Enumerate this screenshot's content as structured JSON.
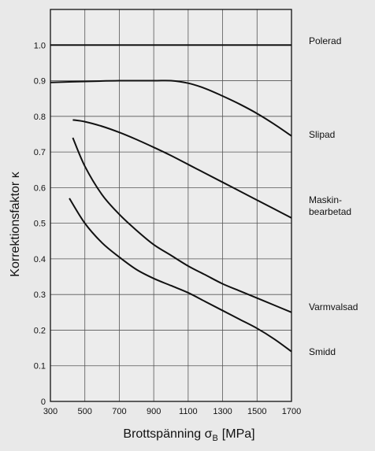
{
  "chart_data": {
    "type": "line",
    "title": "",
    "xlabel": "Brottspänning σ",
    "xlabel_subscript": "B",
    "xlabel_unit": "[MPa]",
    "ylabel": "Korrektionsfaktor  κ",
    "xlim": [
      300,
      1700
    ],
    "ylim": [
      0,
      1.1
    ],
    "x_ticks": [
      300,
      500,
      700,
      900,
      1100,
      1300,
      1500,
      1700
    ],
    "y_ticks": [
      0,
      0.1,
      0.2,
      0.3,
      0.4,
      0.5,
      0.6,
      0.7,
      0.8,
      0.9,
      1.0
    ],
    "y_tick_labels": [
      "0",
      "0.1",
      "0.2",
      "0.3",
      "0.4",
      "0.5",
      "0.6",
      "0.7",
      "0.8",
      "0.9",
      "1.0"
    ],
    "grid": true,
    "legend": "right-side labels",
    "line_color": "#111111",
    "grid_color": "#555555",
    "series": [
      {
        "name": "Polerad",
        "label_lines": [
          "Polerad"
        ],
        "x": [
          300,
          500,
          700,
          900,
          1100,
          1300,
          1500,
          1700
        ],
        "y": [
          1.0,
          1.0,
          1.0,
          1.0,
          1.0,
          1.0,
          1.0,
          1.0
        ]
      },
      {
        "name": "Slipad",
        "label_lines": [
          "Slipad"
        ],
        "x": [
          300,
          500,
          700,
          900,
          1000,
          1100,
          1200,
          1300,
          1400,
          1500,
          1600,
          1700
        ],
        "y": [
          0.895,
          0.898,
          0.9,
          0.9,
          0.9,
          0.893,
          0.878,
          0.857,
          0.834,
          0.808,
          0.778,
          0.745
        ]
      },
      {
        "name": "Maskinbearbetad",
        "label_lines": [
          "Maskin-",
          "bearbetad"
        ],
        "x": [
          430,
          500,
          600,
          700,
          800,
          900,
          1000,
          1100,
          1200,
          1300,
          1400,
          1500,
          1600,
          1700
        ],
        "y": [
          0.79,
          0.785,
          0.772,
          0.755,
          0.735,
          0.713,
          0.69,
          0.665,
          0.64,
          0.615,
          0.59,
          0.565,
          0.54,
          0.515
        ]
      },
      {
        "name": "Varmvalsad",
        "label_lines": [
          "Varmvalsad"
        ],
        "x": [
          430,
          500,
          600,
          700,
          800,
          900,
          1000,
          1100,
          1200,
          1300,
          1400,
          1500,
          1600,
          1700
        ],
        "y": [
          0.74,
          0.66,
          0.58,
          0.525,
          0.48,
          0.44,
          0.41,
          0.38,
          0.355,
          0.33,
          0.31,
          0.29,
          0.27,
          0.25
        ]
      },
      {
        "name": "Smidd",
        "label_lines": [
          "Smidd"
        ],
        "x": [
          410,
          500,
          600,
          700,
          800,
          900,
          1000,
          1100,
          1200,
          1300,
          1400,
          1500,
          1600,
          1700
        ],
        "y": [
          0.57,
          0.5,
          0.445,
          0.405,
          0.37,
          0.345,
          0.325,
          0.305,
          0.28,
          0.255,
          0.23,
          0.205,
          0.175,
          0.14
        ]
      }
    ]
  }
}
